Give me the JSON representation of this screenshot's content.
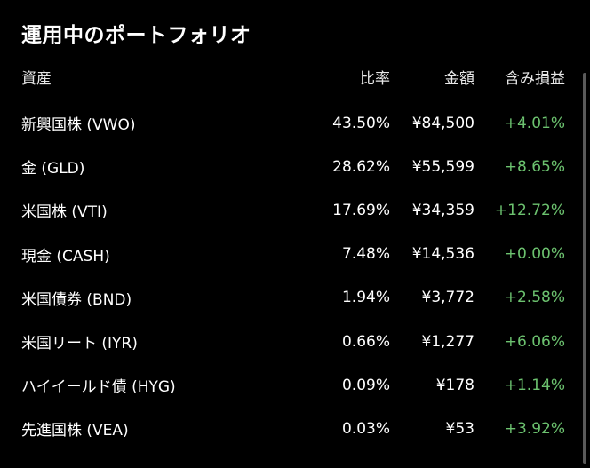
{
  "title": "運用中のポートフォリオ",
  "headers": {
    "name": "資産",
    "ratio": "比率",
    "amount": "金額",
    "pnl": "含み損益"
  },
  "colors": {
    "background": "#000000",
    "text": "#ffffff",
    "positive": "#6cc26f",
    "scrollbar": "#5a5a5a"
  },
  "rows": [
    {
      "name": "新興国株 (VWO)",
      "ratio": "43.50%",
      "amount": "¥84,500",
      "pnl": "+4.01%"
    },
    {
      "name": "金 (GLD)",
      "ratio": "28.62%",
      "amount": "¥55,599",
      "pnl": "+8.65%"
    },
    {
      "name": "米国株 (VTI)",
      "ratio": "17.69%",
      "amount": "¥34,359",
      "pnl": "+12.72%"
    },
    {
      "name": "現金 (CASH)",
      "ratio": "7.48%",
      "amount": "¥14,536",
      "pnl": "+0.00%"
    },
    {
      "name": "米国債券 (BND)",
      "ratio": "1.94%",
      "amount": "¥3,772",
      "pnl": "+2.58%"
    },
    {
      "name": "米国リート (IYR)",
      "ratio": "0.66%",
      "amount": "¥1,277",
      "pnl": "+6.06%"
    },
    {
      "name": "ハイイールド債 (HYG)",
      "ratio": "0.09%",
      "amount": "¥178",
      "pnl": "+1.14%"
    },
    {
      "name": "先進国株 (VEA)",
      "ratio": "0.03%",
      "amount": "¥53",
      "pnl": "+3.92%"
    }
  ]
}
